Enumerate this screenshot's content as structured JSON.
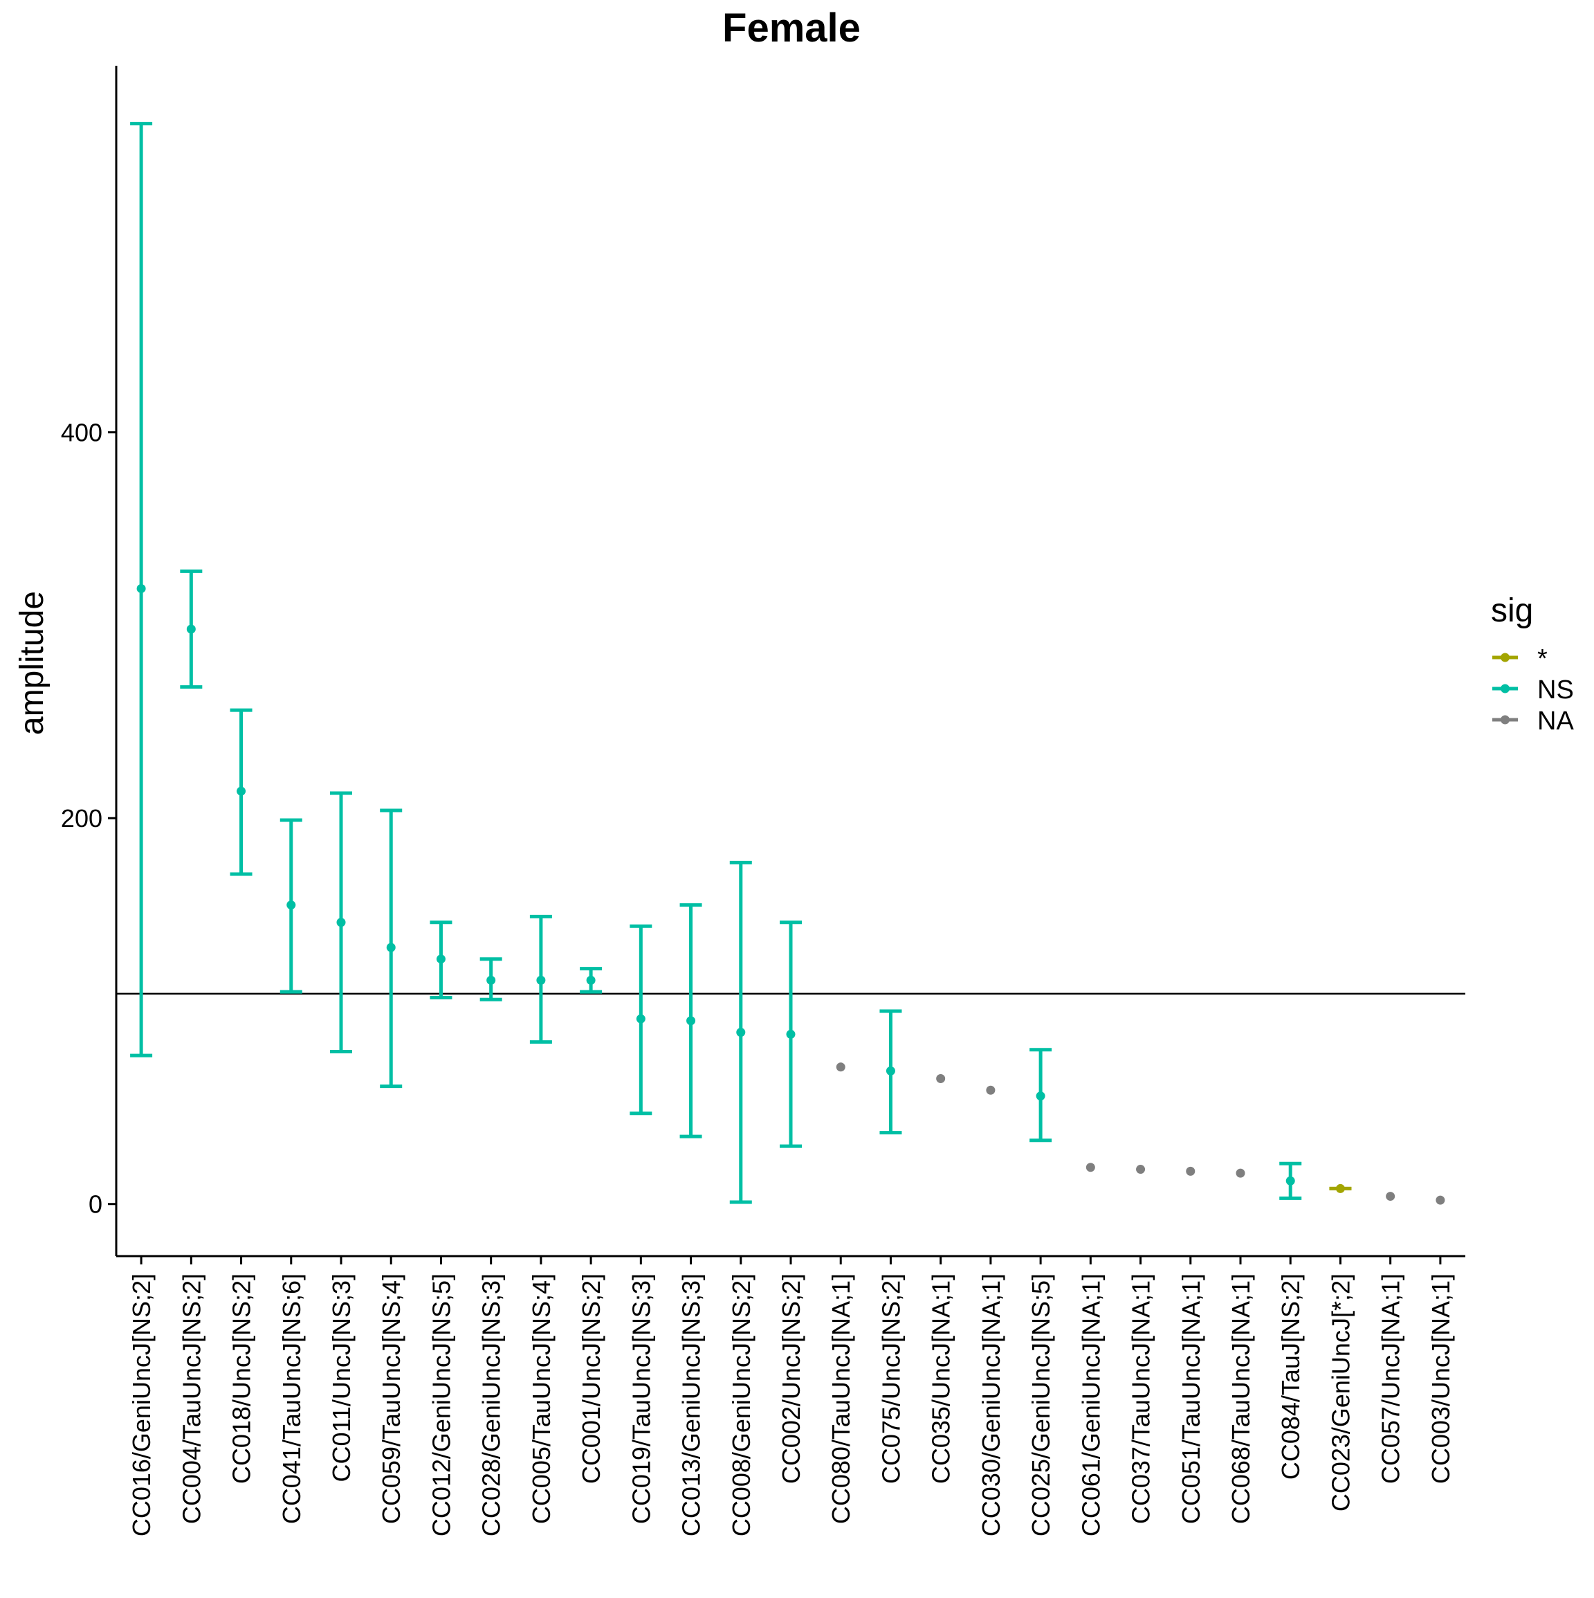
{
  "chart_data": {
    "type": "errorbar",
    "title": "Female",
    "xlabel": "",
    "ylabel": "amplitude",
    "ylim": [
      -27,
      590
    ],
    "yticks": [
      0,
      200,
      400
    ],
    "reference_line": 109,
    "grid": false,
    "legend": {
      "title": "sig",
      "position": "right",
      "entries": [
        {
          "key": "*",
          "label": "*",
          "color": "#a3a500"
        },
        {
          "key": "NS",
          "label": "NS",
          "color": "#00bfa4"
        },
        {
          "key": "NA",
          "label": "NA",
          "color": "#7f7f7f"
        }
      ]
    },
    "categories": [
      "CC016/GeniUncJ[NS;2]",
      "CC004/TauUncJ[NS;2]",
      "CC018/UncJ[NS;2]",
      "CC041/TauUncJ[NS;6]",
      "CC011/UncJ[NS;3]",
      "CC059/TauUncJ[NS;4]",
      "CC012/GeniUncJ[NS;5]",
      "CC028/GeniUncJ[NS;3]",
      "CC005/TauUncJ[NS;4]",
      "CC001/UncJ[NS;2]",
      "CC019/TauUncJ[NS;3]",
      "CC013/GeniUncJ[NS;3]",
      "CC008/GeniUncJ[NS;2]",
      "CC002/UncJ[NS;2]",
      "CC080/TauUncJ[NA;1]",
      "CC075/UncJ[NS;2]",
      "CC035/UncJ[NA;1]",
      "CC030/GeniUncJ[NA;1]",
      "CC025/GeniUncJ[NS;5]",
      "CC061/GeniUncJ[NA;1]",
      "CC037/TauUncJ[NA;1]",
      "CC051/TauUncJ[NA;1]",
      "CC068/TauUncJ[NA;1]",
      "CC084/TauJ[NS;2]",
      "CC023/GeniUncJ[*;2]",
      "CC057/UncJ[NA;1]",
      "CC003/UncJ[NA;1]"
    ],
    "points": [
      {
        "y": 319,
        "ymin": 77,
        "ymax": 560,
        "sig": "NS"
      },
      {
        "y": 298,
        "ymin": 268,
        "ymax": 328,
        "sig": "NS"
      },
      {
        "y": 214,
        "ymin": 171,
        "ymax": 256,
        "sig": "NS"
      },
      {
        "y": 155,
        "ymin": 110,
        "ymax": 199,
        "sig": "NS"
      },
      {
        "y": 146,
        "ymin": 79,
        "ymax": 213,
        "sig": "NS"
      },
      {
        "y": 133,
        "ymin": 61,
        "ymax": 204,
        "sig": "NS"
      },
      {
        "y": 127,
        "ymin": 107,
        "ymax": 146,
        "sig": "NS"
      },
      {
        "y": 116,
        "ymin": 106,
        "ymax": 127,
        "sig": "NS"
      },
      {
        "y": 116,
        "ymin": 84,
        "ymax": 149,
        "sig": "NS"
      },
      {
        "y": 116,
        "ymin": 110,
        "ymax": 122,
        "sig": "NS"
      },
      {
        "y": 96,
        "ymin": 47,
        "ymax": 144,
        "sig": "NS"
      },
      {
        "y": 95,
        "ymin": 35,
        "ymax": 155,
        "sig": "NS"
      },
      {
        "y": 89,
        "ymin": 1,
        "ymax": 177,
        "sig": "NS"
      },
      {
        "y": 88,
        "ymin": 30,
        "ymax": 146,
        "sig": "NS"
      },
      {
        "y": 71,
        "ymin": null,
        "ymax": null,
        "sig": "NA"
      },
      {
        "y": 69,
        "ymin": 37,
        "ymax": 100,
        "sig": "NS"
      },
      {
        "y": 65,
        "ymin": null,
        "ymax": null,
        "sig": "NA"
      },
      {
        "y": 59,
        "ymin": null,
        "ymax": null,
        "sig": "NA"
      },
      {
        "y": 56,
        "ymin": 33,
        "ymax": 80,
        "sig": "NS"
      },
      {
        "y": 19,
        "ymin": null,
        "ymax": null,
        "sig": "NA"
      },
      {
        "y": 18,
        "ymin": null,
        "ymax": null,
        "sig": "NA"
      },
      {
        "y": 17,
        "ymin": null,
        "ymax": null,
        "sig": "NA"
      },
      {
        "y": 16,
        "ymin": null,
        "ymax": null,
        "sig": "NA"
      },
      {
        "y": 12,
        "ymin": 3,
        "ymax": 21,
        "sig": "NS"
      },
      {
        "y": 8,
        "ymin": 8,
        "ymax": 8,
        "sig": "*"
      },
      {
        "y": 4,
        "ymin": null,
        "ymax": null,
        "sig": "NA"
      },
      {
        "y": 2,
        "ymin": null,
        "ymax": null,
        "sig": "NA"
      }
    ]
  }
}
